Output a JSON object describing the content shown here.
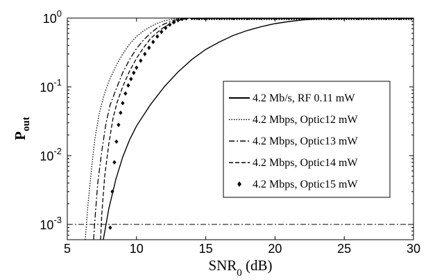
{
  "chart_data": {
    "type": "line",
    "title": "",
    "xlabel": "SNR",
    "xlabel_sub": "0",
    "xlabel_unit": " (dB)",
    "ylabel": "P",
    "ylabel_sub": "out",
    "xlim": [
      5,
      30
    ],
    "ylim": [
      0.0006,
      1
    ],
    "yscale": "log",
    "grid": false,
    "legend_position": "center-right",
    "x_ticks": [
      5,
      10,
      15,
      20,
      25,
      30
    ],
    "x_tick_labels": [
      "5",
      "10",
      "15",
      "20",
      "25",
      "30"
    ],
    "y_ticks": [
      0.001,
      0.01,
      0.1,
      1
    ],
    "y_tick_labels": [
      {
        "base": "10",
        "exp": "-3"
      },
      {
        "base": "10",
        "exp": "-2"
      },
      {
        "base": "10",
        "exp": "-1"
      },
      {
        "base": "10",
        "exp": "0"
      }
    ],
    "series": [
      {
        "name": "4.2 Mb/s, RF 0.11 mW",
        "style": "solid",
        "x": [
          7.6,
          8,
          8.5,
          9,
          9.5,
          10,
          11,
          12,
          13,
          14,
          15,
          16,
          17,
          18,
          19,
          20,
          21,
          22,
          23,
          24,
          25,
          26,
          28,
          30
        ],
        "y": [
          0.0006,
          0.0017,
          0.0045,
          0.0095,
          0.017,
          0.027,
          0.055,
          0.1,
          0.165,
          0.25,
          0.35,
          0.45,
          0.56,
          0.66,
          0.75,
          0.83,
          0.89,
          0.94,
          0.97,
          0.99,
          1,
          1,
          1,
          1
        ]
      },
      {
        "name": "4.2 Mbps, Optic12  mW",
        "style": "dotted",
        "x": [
          6.3,
          6.5,
          6.8,
          7,
          7.3,
          7.6,
          8,
          8.5,
          9,
          9.5,
          10,
          10.5,
          11,
          11.5,
          12,
          12.5,
          13,
          13.5,
          14,
          30
        ],
        "y": [
          0.0006,
          0.002,
          0.008,
          0.018,
          0.04,
          0.07,
          0.12,
          0.2,
          0.3,
          0.42,
          0.54,
          0.65,
          0.75,
          0.84,
          0.91,
          0.96,
          0.99,
          1,
          1,
          1
        ]
      },
      {
        "name": "4.2 Mbps, Optic13  mW",
        "style": "dashdot",
        "x": [
          6.9,
          7,
          7.2,
          7.5,
          7.8,
          8.1,
          8.5,
          9,
          9.5,
          10,
          10.5,
          11,
          11.5,
          12,
          12.5,
          13,
          13.5,
          14,
          30
        ],
        "y": [
          0.0006,
          0.0012,
          0.004,
          0.012,
          0.03,
          0.055,
          0.09,
          0.16,
          0.25,
          0.36,
          0.48,
          0.6,
          0.72,
          0.82,
          0.9,
          0.96,
          0.99,
          1,
          1
        ]
      },
      {
        "name": "4.2 Mbps, Optic14  mW",
        "style": "dashed",
        "x": [
          7.4,
          7.5,
          7.7,
          8,
          8.3,
          8.6,
          9,
          9.5,
          10,
          10.5,
          11,
          11.5,
          12,
          12.5,
          13,
          13.5,
          14,
          30
        ],
        "y": [
          0.0006,
          0.0015,
          0.005,
          0.015,
          0.035,
          0.06,
          0.1,
          0.17,
          0.26,
          0.37,
          0.5,
          0.62,
          0.74,
          0.84,
          0.92,
          0.97,
          1,
          1
        ]
      },
      {
        "name": "4.2 Mbps, Optic15  mW",
        "style": "diamond",
        "x": [
          8.1,
          8.25,
          8.4,
          8.55,
          8.7,
          8.85,
          9,
          9.2,
          9.4,
          9.6,
          9.8,
          10,
          10.3,
          10.6,
          10.9,
          11.2,
          11.5,
          11.8,
          12.1,
          12.4,
          12.7,
          13,
          13.3,
          13.6,
          14,
          14.5,
          15,
          16,
          17,
          18,
          19,
          20,
          21,
          22,
          23,
          24,
          25,
          26,
          27,
          28,
          29,
          30
        ],
        "y": [
          0.0009,
          0.003,
          0.008,
          0.016,
          0.028,
          0.042,
          0.058,
          0.08,
          0.105,
          0.13,
          0.16,
          0.19,
          0.24,
          0.3,
          0.37,
          0.45,
          0.54,
          0.63,
          0.72,
          0.8,
          0.87,
          0.93,
          0.97,
          0.99,
          1,
          1,
          1,
          1,
          1,
          1,
          1,
          1,
          1,
          1,
          1,
          1,
          1,
          1,
          1,
          1,
          1,
          1
        ]
      }
    ],
    "reference_line": {
      "y": 0.001,
      "style": "dashdot"
    }
  }
}
